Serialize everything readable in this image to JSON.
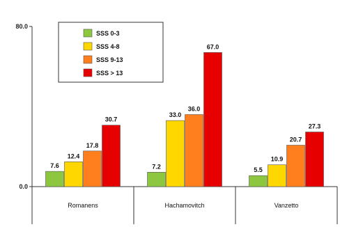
{
  "chart_data": {
    "type": "bar",
    "categories": [
      "Romanens",
      "Hachamovitch",
      "Vanzetto"
    ],
    "series": [
      {
        "name": "SSS 0-3",
        "color": "#8dc63f",
        "values": [
          7.6,
          7.2,
          5.5
        ],
        "labels": [
          "7.6",
          "7.2",
          "5.5"
        ]
      },
      {
        "name": "SSS 4-8",
        "color": "#ffd700",
        "values": [
          12.4,
          33.0,
          10.9
        ],
        "labels": [
          "12.4",
          "33.0",
          "10.9"
        ]
      },
      {
        "name": "SSS 9-13",
        "color": "#ff7f1e",
        "values": [
          17.8,
          36.0,
          20.7
        ],
        "labels": [
          "17.8",
          "36.0",
          "20.7"
        ]
      },
      {
        "name": "SSS > 13",
        "color": "#e60000",
        "values": [
          30.7,
          67.0,
          27.3
        ],
        "labels": [
          "30.7",
          "67.0",
          "27.3"
        ]
      }
    ],
    "yticks": [
      "0.0",
      "80.0"
    ],
    "ylim": [
      0,
      80
    ],
    "legend_position": "top-left",
    "grid": false
  }
}
